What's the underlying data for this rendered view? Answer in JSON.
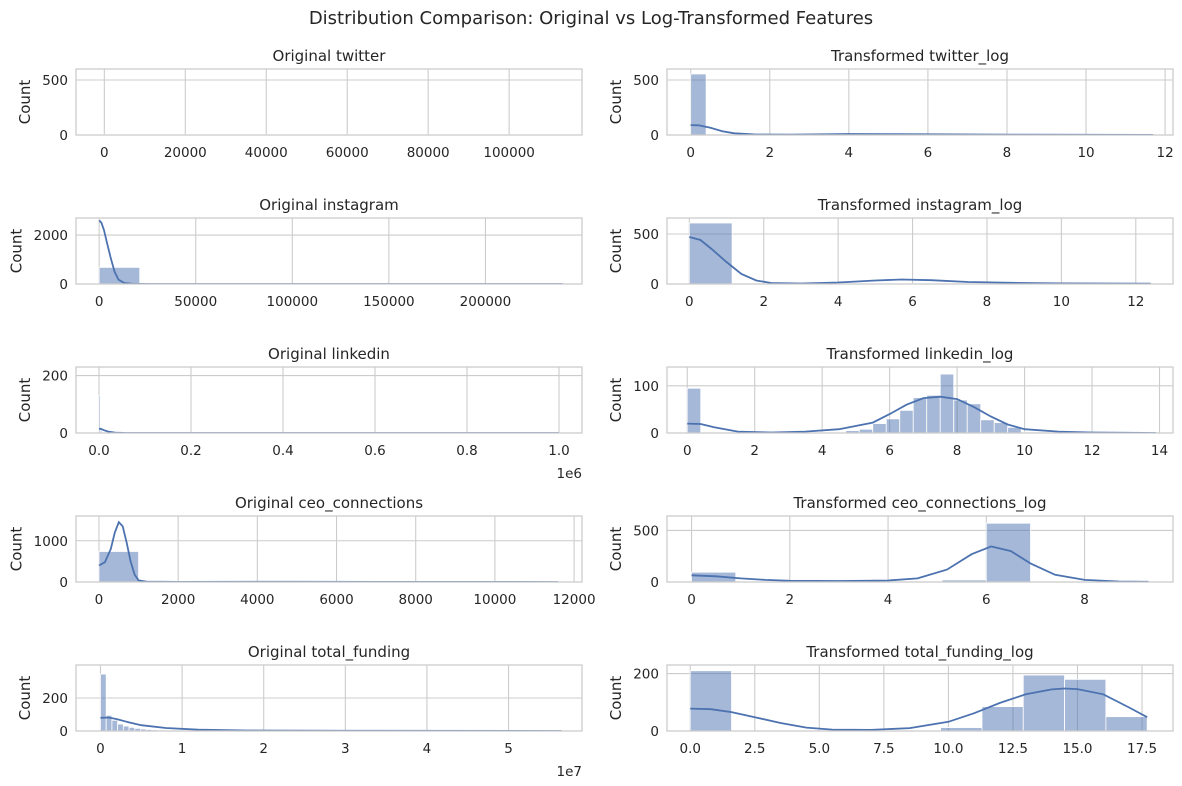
{
  "figure": {
    "title": "Distribution Comparison: Original vs Log-Transformed Features"
  },
  "chart_data": [
    {
      "type": "bar",
      "title": "Original twitter",
      "xlabel": "",
      "ylabel": "Count",
      "xlim": [
        -7000,
        118000
      ],
      "ylim": [
        0,
        600
      ],
      "xticks": [
        0,
        20000,
        40000,
        60000,
        80000,
        100000
      ],
      "yticks": [
        0,
        500
      ],
      "exponent": "",
      "bins": [
        [
          0,
          112000,
          3
        ]
      ],
      "kde": []
    },
    {
      "type": "bar",
      "title": "Transformed twitter_log",
      "xlabel": "",
      "ylabel": "Count",
      "xlim": [
        -0.6,
        12.2
      ],
      "ylim": [
        0,
        600
      ],
      "xticks": [
        0,
        2,
        4,
        6,
        8,
        10,
        12
      ],
      "yticks": [
        0,
        500
      ],
      "exponent": "",
      "bins": [
        [
          0,
          0.39,
          555
        ],
        [
          0.39,
          11.7,
          3
        ]
      ],
      "kde": [
        [
          0,
          90
        ],
        [
          0.2,
          88
        ],
        [
          0.5,
          65
        ],
        [
          0.8,
          35
        ],
        [
          1.1,
          15
        ],
        [
          1.6,
          5
        ],
        [
          2.5,
          3
        ],
        [
          4,
          9
        ],
        [
          5,
          8
        ],
        [
          6,
          6
        ],
        [
          8,
          4
        ],
        [
          10,
          2
        ],
        [
          11.7,
          1
        ]
      ]
    },
    {
      "type": "bar",
      "title": "Original instagram",
      "xlabel": "",
      "ylabel": "Count",
      "xlim": [
        -12000,
        250000
      ],
      "ylim": [
        0,
        2700
      ],
      "xticks": [
        0,
        50000,
        100000,
        150000,
        200000
      ],
      "yticks": [
        0,
        2000
      ],
      "exponent": "",
      "bins": [
        [
          0,
          21000,
          680
        ],
        [
          21000,
          240000,
          5
        ]
      ],
      "kde": [
        [
          0,
          2600
        ],
        [
          1200,
          2500
        ],
        [
          2500,
          2200
        ],
        [
          4000,
          1700
        ],
        [
          6000,
          1050
        ],
        [
          8000,
          500
        ],
        [
          10000,
          180
        ],
        [
          13000,
          40
        ],
        [
          17000,
          8
        ],
        [
          25000,
          2
        ],
        [
          240000,
          0
        ]
      ]
    },
    {
      "type": "bar",
      "title": "Transformed instagram_log",
      "xlabel": "",
      "ylabel": "Count",
      "xlim": [
        -0.6,
        13.0
      ],
      "ylim": [
        0,
        660
      ],
      "xticks": [
        0,
        2,
        4,
        6,
        8,
        10,
        12
      ],
      "yticks": [
        0,
        500
      ],
      "exponent": "",
      "bins": [
        [
          0,
          1.15,
          610
        ],
        [
          1.15,
          12.4,
          5
        ]
      ],
      "kde": [
        [
          0,
          470
        ],
        [
          0.3,
          440
        ],
        [
          0.6,
          350
        ],
        [
          1.0,
          220
        ],
        [
          1.4,
          100
        ],
        [
          1.8,
          35
        ],
        [
          2.2,
          10
        ],
        [
          3,
          5
        ],
        [
          4,
          15
        ],
        [
          5,
          35
        ],
        [
          5.7,
          45
        ],
        [
          6.5,
          38
        ],
        [
          7.5,
          20
        ],
        [
          9,
          10
        ],
        [
          10,
          6
        ],
        [
          12.4,
          3
        ]
      ]
    },
    {
      "type": "bar",
      "title": "Original linkedin",
      "xlabel": "",
      "ylabel": "Count",
      "xlim": [
        -0.05,
        1.05
      ],
      "ylim": [
        0,
        230
      ],
      "xticks": [
        0,
        0.2,
        0.4,
        0.6,
        0.8,
        1.0
      ],
      "yticks": [
        0,
        200
      ],
      "xticklabels": [
        "0.0",
        "0.2",
        "0.4",
        "0.6",
        "0.8",
        "1.0"
      ],
      "exponent": "1e6",
      "bins": [
        [
          0,
          0.003,
          130
        ],
        [
          0.003,
          0.006,
          20
        ],
        [
          0.006,
          1.0,
          2
        ]
      ],
      "kde": [
        [
          0,
          15
        ],
        [
          0.005,
          14
        ],
        [
          0.01,
          10
        ],
        [
          0.02,
          5
        ],
        [
          0.035,
          1
        ],
        [
          0.06,
          0
        ],
        [
          1.0,
          0
        ]
      ]
    },
    {
      "type": "bar",
      "title": "Transformed linkedin_log",
      "xlabel": "",
      "ylabel": "Count",
      "xlim": [
        -0.6,
        14.4
      ],
      "ylim": [
        0,
        140
      ],
      "xticks": [
        0,
        2,
        4,
        6,
        8,
        10,
        12,
        14
      ],
      "yticks": [
        0,
        100
      ],
      "exponent": "",
      "bins": [
        [
          0,
          0.4,
          95
        ],
        [
          0.4,
          4.7,
          1
        ],
        [
          4.7,
          5.1,
          5
        ],
        [
          5.1,
          5.5,
          8
        ],
        [
          5.5,
          5.9,
          20
        ],
        [
          5.9,
          6.3,
          30
        ],
        [
          6.3,
          6.7,
          48
        ],
        [
          6.7,
          7.1,
          75
        ],
        [
          7.1,
          7.5,
          80
        ],
        [
          7.5,
          7.9,
          125
        ],
        [
          7.9,
          8.3,
          70
        ],
        [
          8.3,
          8.7,
          62
        ],
        [
          8.7,
          9.1,
          28
        ],
        [
          9.1,
          9.5,
          22
        ],
        [
          9.5,
          9.9,
          12
        ],
        [
          9.9,
          13.9,
          2
        ]
      ],
      "kde": [
        [
          0,
          20
        ],
        [
          0.4,
          19
        ],
        [
          0.8,
          12
        ],
        [
          1.5,
          3
        ],
        [
          2.5,
          1
        ],
        [
          3.5,
          3
        ],
        [
          4.5,
          8
        ],
        [
          5.5,
          22
        ],
        [
          6,
          40
        ],
        [
          6.5,
          60
        ],
        [
          7,
          74
        ],
        [
          7.5,
          77
        ],
        [
          8,
          72
        ],
        [
          8.5,
          55
        ],
        [
          9,
          35
        ],
        [
          9.5,
          18
        ],
        [
          10,
          8
        ],
        [
          11,
          3
        ],
        [
          12,
          1
        ],
        [
          13.9,
          0
        ]
      ]
    },
    {
      "type": "bar",
      "title": "Original ceo_connections",
      "xlabel": "",
      "ylabel": "Count",
      "xlim": [
        -580,
        12200
      ],
      "ylim": [
        0,
        1600
      ],
      "xticks": [
        0,
        2000,
        4000,
        6000,
        8000,
        10000,
        12000
      ],
      "yticks": [
        0,
        1000
      ],
      "exponent": "",
      "bins": [
        [
          0,
          1000,
          740
        ],
        [
          1000,
          11600,
          5
        ]
      ],
      "kde": [
        [
          0,
          400
        ],
        [
          150,
          480
        ],
        [
          300,
          800
        ],
        [
          400,
          1200
        ],
        [
          500,
          1450
        ],
        [
          600,
          1350
        ],
        [
          700,
          950
        ],
        [
          800,
          500
        ],
        [
          900,
          180
        ],
        [
          1000,
          40
        ],
        [
          1200,
          8
        ],
        [
          2000,
          2
        ],
        [
          5000,
          5
        ],
        [
          11600,
          0
        ]
      ]
    },
    {
      "type": "bar",
      "title": "Transformed ceo_connections_log",
      "xlabel": "",
      "ylabel": "Count",
      "xlim": [
        -0.5,
        9.8
      ],
      "ylim": [
        0,
        640
      ],
      "xticks": [
        0,
        2,
        4,
        6,
        8
      ],
      "yticks": [
        0,
        500
      ],
      "exponent": "",
      "bins": [
        [
          0,
          0.9,
          95
        ],
        [
          0.9,
          5.1,
          5
        ],
        [
          5.1,
          6.0,
          20
        ],
        [
          6.0,
          6.9,
          570
        ],
        [
          6.9,
          9.3,
          5
        ]
      ],
      "kde": [
        [
          0,
          65
        ],
        [
          0.5,
          55
        ],
        [
          1,
          35
        ],
        [
          1.5,
          20
        ],
        [
          2,
          12
        ],
        [
          3,
          10
        ],
        [
          4,
          15
        ],
        [
          4.6,
          35
        ],
        [
          5.2,
          120
        ],
        [
          5.7,
          270
        ],
        [
          6.1,
          345
        ],
        [
          6.5,
          300
        ],
        [
          6.9,
          180
        ],
        [
          7.4,
          70
        ],
        [
          8,
          20
        ],
        [
          8.7,
          5
        ],
        [
          9.3,
          2
        ]
      ]
    },
    {
      "type": "bar",
      "title": "Original total_funding",
      "xlabel": "",
      "ylabel": "Count",
      "xlim": [
        -0.3,
        5.9
      ],
      "ylim": [
        0,
        400
      ],
      "xticks": [
        0,
        1,
        2,
        3,
        4,
        5
      ],
      "yticks": [
        0,
        200
      ],
      "exponent": "1e7",
      "bins": [
        [
          0,
          0.07,
          345
        ],
        [
          0.07,
          0.14,
          95
        ],
        [
          0.14,
          0.21,
          65
        ],
        [
          0.21,
          0.28,
          42
        ],
        [
          0.28,
          0.35,
          30
        ],
        [
          0.35,
          0.42,
          22
        ],
        [
          0.42,
          0.49,
          16
        ],
        [
          0.49,
          0.56,
          12
        ],
        [
          0.56,
          0.63,
          9
        ],
        [
          0.63,
          0.7,
          7
        ],
        [
          0.7,
          5.65,
          3
        ]
      ],
      "kde": [
        [
          0,
          80
        ],
        [
          0.1,
          82
        ],
        [
          0.2,
          72
        ],
        [
          0.35,
          52
        ],
        [
          0.5,
          35
        ],
        [
          0.8,
          18
        ],
        [
          1.2,
          8
        ],
        [
          1.8,
          3
        ],
        [
          3,
          1
        ],
        [
          5.65,
          0
        ]
      ]
    },
    {
      "type": "bar",
      "title": "Transformed total_funding_log",
      "xlabel": "",
      "ylabel": "Count",
      "xlim": [
        -0.9,
        18.7
      ],
      "ylim": [
        0,
        230
      ],
      "xticks": [
        0,
        2.5,
        5,
        7.5,
        10,
        12.5,
        15,
        17.5
      ],
      "yticks": [
        0,
        200
      ],
      "xticklabels": [
        "0.0",
        "2.5",
        "5.0",
        "7.5",
        "10.0",
        "12.5",
        "15.0",
        "17.5"
      ],
      "exponent": "",
      "bins": [
        [
          0,
          1.6,
          210
        ],
        [
          1.6,
          9.7,
          1
        ],
        [
          9.7,
          11.3,
          12
        ],
        [
          11.3,
          12.9,
          85
        ],
        [
          12.9,
          14.5,
          195
        ],
        [
          14.5,
          16.1,
          180
        ],
        [
          16.1,
          17.7,
          50
        ]
      ],
      "kde": [
        [
          0,
          78
        ],
        [
          0.8,
          76
        ],
        [
          1.6,
          66
        ],
        [
          2.5,
          48
        ],
        [
          3.5,
          28
        ],
        [
          4.5,
          12
        ],
        [
          5.5,
          5
        ],
        [
          7,
          4
        ],
        [
          8.5,
          10
        ],
        [
          10,
          32
        ],
        [
          11,
          62
        ],
        [
          12,
          98
        ],
        [
          13,
          128
        ],
        [
          14,
          145
        ],
        [
          14.5,
          148
        ],
        [
          15,
          146
        ],
        [
          16,
          128
        ],
        [
          17,
          82
        ],
        [
          17.7,
          48
        ]
      ]
    }
  ]
}
